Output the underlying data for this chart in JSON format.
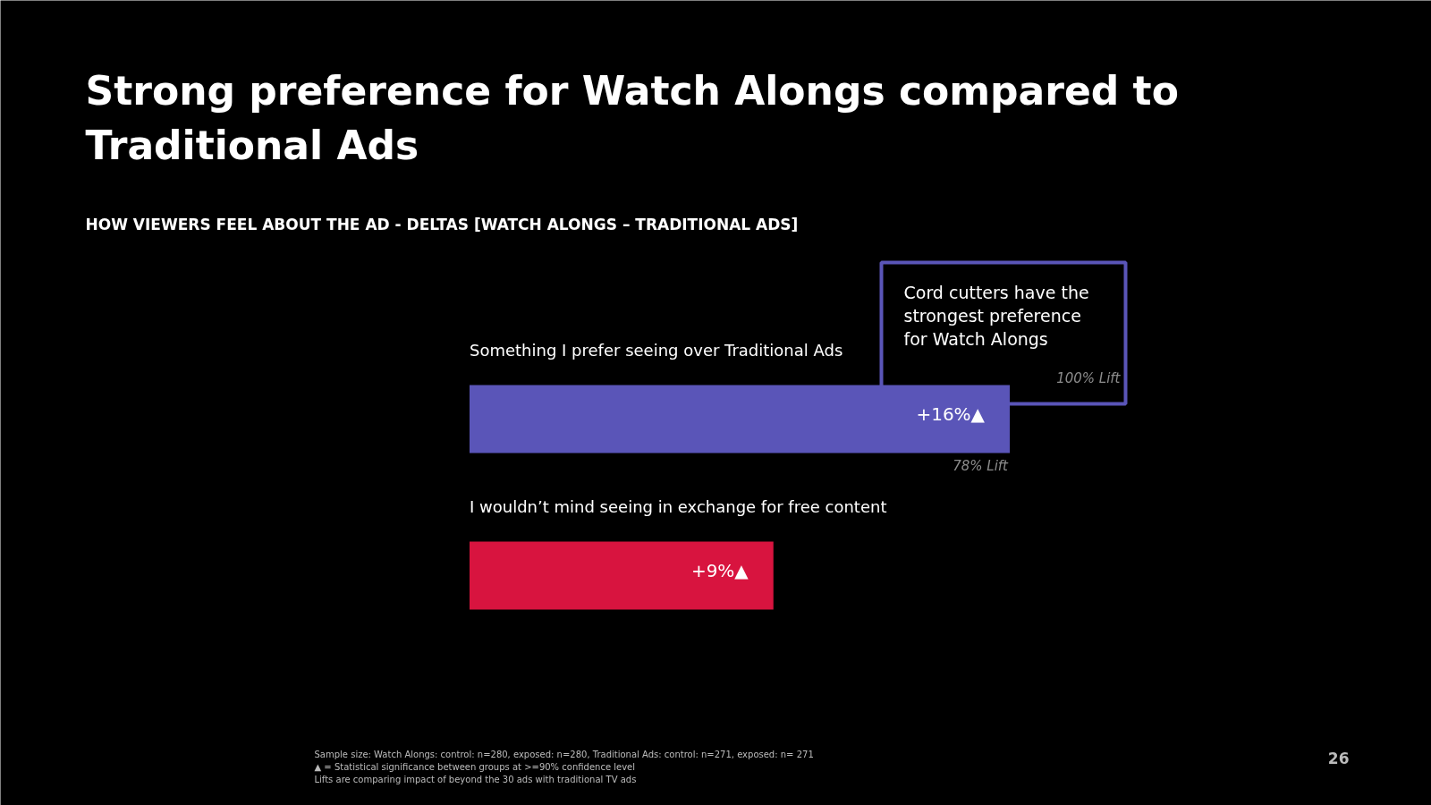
{
  "chart_data": {
    "type": "bar",
    "orientation": "horizontal",
    "title": "Strong preference for Watch Alongs compared to Traditional Ads",
    "subtitle": "HOW VIEWERS FEEL ABOUT THE AD - DELTAS [WATCH ALONGS – TRADITIONAL ADS]",
    "categories": [
      "Something I prefer seeing over Traditional Ads",
      "I wouldn’t mind seeing in exchange for free content"
    ],
    "values": [
      16,
      9
    ],
    "colors": [
      "#5a55b8",
      "#d8143f"
    ],
    "value_labels": [
      "+16%▲",
      "+9%▲"
    ],
    "annotations": [
      "78% Lift",
      "Cord cutters have the strongest preference for Watch Alongs",
      "100% Lift",
      "Sample size: Watch Alongs: control: n=280, exposed: n=280, Traditional Ads: control: n=271, exposed: n= 271",
      "▲ = Statistical significance between groups at >=90% confidence level",
      "Lifts are comparing impact of beyond the 30 ads with traditional TV ads",
      "26"
    ]
  }
}
